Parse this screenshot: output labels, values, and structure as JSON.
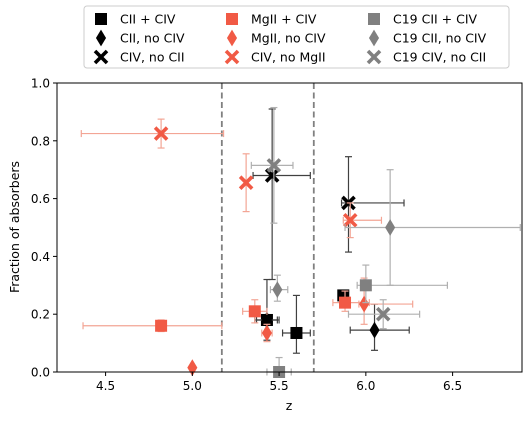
{
  "chart_data": {
    "type": "scatter",
    "title": "",
    "xlabel": "z",
    "ylabel": "Fraction of absorbers",
    "xlim": [
      4.22,
      6.9
    ],
    "ylim": [
      0.0,
      1.0
    ],
    "xticks": [
      4.5,
      5.0,
      5.5,
      6.0,
      6.5
    ],
    "xtick_labels": [
      "4.5",
      "5.0",
      "5.5",
      "6.0",
      "6.5"
    ],
    "yticks": [
      0.0,
      0.2,
      0.4,
      0.6,
      0.8,
      1.0
    ],
    "ytick_labels": [
      "0.0",
      "0.2",
      "0.4",
      "0.6",
      "0.8",
      "1.0"
    ],
    "grid": false,
    "legend_position": "top-center",
    "vlines": [
      {
        "x": 5.17,
        "color": "#808080",
        "style": "dashed"
      },
      {
        "x": 5.7,
        "color": "#808080",
        "style": "dashed"
      }
    ],
    "series": [
      {
        "name": "CII + CIV",
        "marker": "square",
        "color": "#000000",
        "ecolor": "#404040",
        "points": [
          {
            "x": 5.43,
            "y": 0.18,
            "xerr": [
              0.07,
              0.07
            ],
            "yerr": [
              0.0,
              0.0
            ]
          },
          {
            "x": 5.6,
            "y": 0.135,
            "xerr": [
              0.08,
              0.08
            ],
            "yerr": [
              0.07,
              0.13
            ]
          },
          {
            "x": 5.87,
            "y": 0.265,
            "xerr": [
              0.0,
              0.0
            ],
            "yerr": [
              0.0,
              0.0
            ]
          }
        ]
      },
      {
        "name": "CII, no CIV",
        "marker": "diamond",
        "color": "#000000",
        "ecolor": "#404040",
        "points": [
          {
            "x": 5.43,
            "y": 0.18,
            "xerr": [
              0.06,
              0.06
            ],
            "yerr": [
              0.07,
              0.14
            ]
          },
          {
            "x": 6.05,
            "y": 0.145,
            "xerr": [
              0.14,
              0.2
            ],
            "yerr": [
              0.07,
              0.09
            ]
          }
        ]
      },
      {
        "name": "CIV, no CII",
        "marker": "x",
        "color": "#000000",
        "ecolor": "#404040",
        "points": [
          {
            "x": 5.46,
            "y": 0.68,
            "xerr": [
              0.11,
              0.22
            ],
            "yerr": [
              0.36,
              0.23
            ]
          },
          {
            "x": 5.9,
            "y": 0.585,
            "xerr": [
              0.04,
              0.32
            ],
            "yerr": [
              0.17,
              0.16
            ]
          }
        ]
      },
      {
        "name": "MgII + CIV",
        "marker": "square",
        "color": "#f15a45",
        "ecolor": "#f3a595",
        "points": [
          {
            "x": 4.82,
            "y": 0.16,
            "xerr": [
              0.45,
              0.35
            ],
            "yerr": [
              0.02,
              0.02
            ]
          },
          {
            "x": 5.36,
            "y": 0.21,
            "xerr": [
              0.07,
              0.07
            ],
            "yerr": [
              0.04,
              0.04
            ]
          },
          {
            "x": 5.88,
            "y": 0.24,
            "xerr": [
              0.07,
              0.14
            ],
            "yerr": [
              0.03,
              0.04
            ]
          }
        ]
      },
      {
        "name": "MgII, no CIV",
        "marker": "diamond",
        "color": "#f15a45",
        "ecolor": "#f3a595",
        "points": [
          {
            "x": 5.0,
            "y": 0.015,
            "xerr": [
              0.0,
              0.0
            ],
            "yerr": [
              0.0,
              0.0
            ]
          },
          {
            "x": 5.43,
            "y": 0.135,
            "xerr": [
              0.03,
              0.03
            ],
            "yerr": [
              0.03,
              0.03
            ]
          },
          {
            "x": 5.99,
            "y": 0.235,
            "xerr": [
              0.03,
              0.28
            ],
            "yerr": [
              0.07,
              0.09
            ]
          }
        ]
      },
      {
        "name": "CIV, no MgII",
        "marker": "x",
        "color": "#f15a45",
        "ecolor": "#f3a595",
        "points": [
          {
            "x": 4.82,
            "y": 0.825,
            "xerr": [
              0.46,
              0.36
            ],
            "yerr": [
              0.05,
              0.05
            ]
          },
          {
            "x": 5.31,
            "y": 0.655,
            "xerr": [
              0.0,
              0.0
            ],
            "yerr": [
              0.1,
              0.1
            ]
          },
          {
            "x": 5.91,
            "y": 0.525,
            "xerr": [
              0.04,
              0.18
            ],
            "yerr": [
              0.06,
              0.06
            ]
          }
        ]
      },
      {
        "name": "C19 CII + CIV",
        "marker": "square",
        "color": "#808080",
        "ecolor": "#b0b0b0",
        "points": [
          {
            "x": 5.5,
            "y": 0.0,
            "xerr": [
              0.07,
              0.07
            ],
            "yerr": [
              0.0,
              0.05
            ]
          },
          {
            "x": 6.0,
            "y": 0.3,
            "xerr": [
              0.05,
              0.47
            ],
            "yerr": [
              0.06,
              0.07
            ]
          }
        ]
      },
      {
        "name": "C19 CII, no CIV",
        "marker": "diamond",
        "color": "#808080",
        "ecolor": "#b0b0b0",
        "points": [
          {
            "x": 5.49,
            "y": 0.285,
            "xerr": [
              0.04,
              0.06
            ],
            "yerr": [
              0.04,
              0.05
            ]
          },
          {
            "x": 6.14,
            "y": 0.5,
            "xerr": [
              0.26,
              0.75
            ],
            "yerr": [
              0.2,
              0.2
            ]
          }
        ]
      },
      {
        "name": "C19 CIV, no CII",
        "marker": "x",
        "color": "#808080",
        "ecolor": "#b0b0b0",
        "points": [
          {
            "x": 5.47,
            "y": 0.715,
            "xerr": [
              0.13,
              0.11
            ],
            "yerr": [
              0.2,
              0.2
            ]
          },
          {
            "x": 6.1,
            "y": 0.2,
            "xerr": [
              0.2,
              0.21
            ],
            "yerr": [
              0.05,
              0.05
            ]
          }
        ]
      }
    ]
  }
}
